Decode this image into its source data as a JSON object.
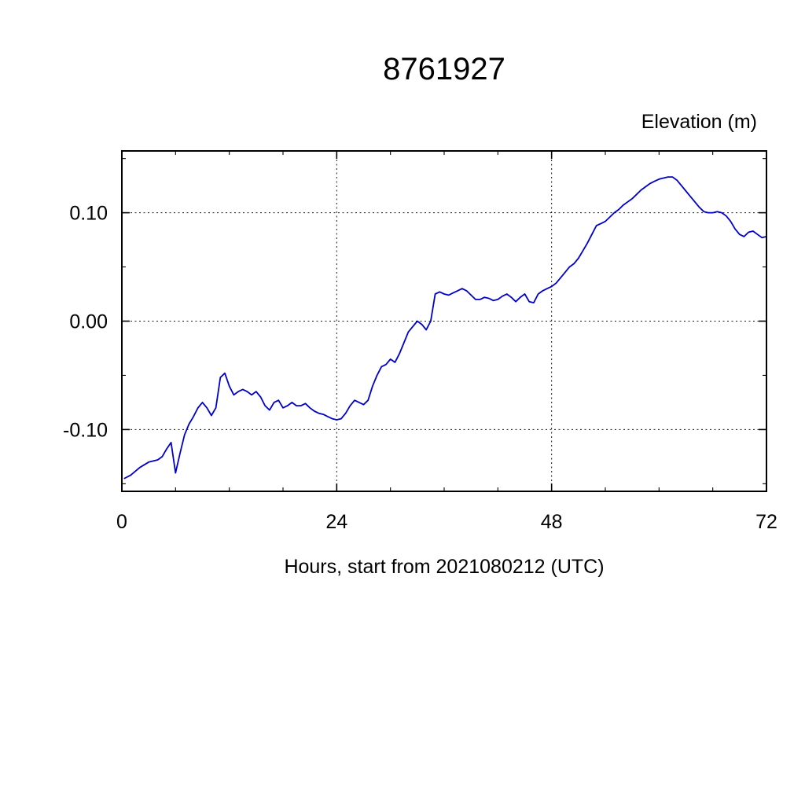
{
  "chart_data": {
    "type": "line",
    "title": "8761927",
    "top_right_label": "Elevation (m)",
    "xlabel": "Hours, start from 2021080212 (UTC)",
    "ylabel": "Elevation (m)",
    "xlim": [
      0,
      72
    ],
    "ylim": [
      -0.157,
      0.157
    ],
    "xticks": {
      "values": [
        0,
        24,
        48,
        72
      ],
      "labels": [
        "0",
        "24",
        "48",
        "72"
      ]
    },
    "yticks": {
      "values": [
        -0.1,
        0.0,
        0.1
      ],
      "labels": [
        "-0.10",
        "0.00",
        "0.10"
      ]
    },
    "x_minor_ticks": [
      6,
      12,
      18,
      30,
      36,
      42,
      54,
      60,
      66
    ],
    "y_minor_ticks": [
      -0.15,
      -0.05,
      0.05,
      0.15
    ],
    "grid": true,
    "legend": "none",
    "line_color": "#0000cc",
    "series": [
      {
        "name": "elevation",
        "points": [
          [
            0.3,
            -0.145
          ],
          [
            1,
            -0.142
          ],
          [
            2,
            -0.135
          ],
          [
            3,
            -0.13
          ],
          [
            4,
            -0.128
          ],
          [
            4.5,
            -0.125
          ],
          [
            5,
            -0.118
          ],
          [
            5.5,
            -0.112
          ],
          [
            6,
            -0.14
          ],
          [
            6.5,
            -0.122
          ],
          [
            7,
            -0.105
          ],
          [
            7.5,
            -0.095
          ],
          [
            8,
            -0.088
          ],
          [
            8.5,
            -0.08
          ],
          [
            9,
            -0.075
          ],
          [
            9.5,
            -0.08
          ],
          [
            10,
            -0.087
          ],
          [
            10.5,
            -0.08
          ],
          [
            11,
            -0.052
          ],
          [
            11.5,
            -0.048
          ],
          [
            12,
            -0.06
          ],
          [
            12.5,
            -0.068
          ],
          [
            13,
            -0.065
          ],
          [
            13.5,
            -0.063
          ],
          [
            14,
            -0.065
          ],
          [
            14.5,
            -0.068
          ],
          [
            15,
            -0.065
          ],
          [
            15.5,
            -0.07
          ],
          [
            16,
            -0.078
          ],
          [
            16.5,
            -0.082
          ],
          [
            17,
            -0.075
          ],
          [
            17.5,
            -0.073
          ],
          [
            18,
            -0.08
          ],
          [
            18.5,
            -0.078
          ],
          [
            19,
            -0.075
          ],
          [
            19.5,
            -0.078
          ],
          [
            20,
            -0.078
          ],
          [
            20.5,
            -0.076
          ],
          [
            21,
            -0.08
          ],
          [
            21.5,
            -0.083
          ],
          [
            22,
            -0.085
          ],
          [
            22.5,
            -0.086
          ],
          [
            23,
            -0.088
          ],
          [
            23.5,
            -0.09
          ],
          [
            24,
            -0.091
          ],
          [
            24.5,
            -0.09
          ],
          [
            25,
            -0.085
          ],
          [
            25.5,
            -0.078
          ],
          [
            26,
            -0.073
          ],
          [
            26.5,
            -0.075
          ],
          [
            27,
            -0.077
          ],
          [
            27.5,
            -0.073
          ],
          [
            28,
            -0.06
          ],
          [
            28.5,
            -0.05
          ],
          [
            29,
            -0.042
          ],
          [
            29.5,
            -0.04
          ],
          [
            30,
            -0.035
          ],
          [
            30.5,
            -0.038
          ],
          [
            31,
            -0.03
          ],
          [
            31.5,
            -0.02
          ],
          [
            32,
            -0.01
          ],
          [
            32.5,
            -0.005
          ],
          [
            33,
            0.0
          ],
          [
            33.5,
            -0.003
          ],
          [
            34,
            -0.008
          ],
          [
            34.5,
            0.0
          ],
          [
            35,
            0.025
          ],
          [
            35.5,
            0.027
          ],
          [
            36,
            0.025
          ],
          [
            36.5,
            0.024
          ],
          [
            37,
            0.026
          ],
          [
            37.5,
            0.028
          ],
          [
            38,
            0.03
          ],
          [
            38.5,
            0.028
          ],
          [
            39,
            0.024
          ],
          [
            39.5,
            0.02
          ],
          [
            40,
            0.02
          ],
          [
            40.5,
            0.022
          ],
          [
            41,
            0.021
          ],
          [
            41.5,
            0.019
          ],
          [
            42,
            0.02
          ],
          [
            42.5,
            0.023
          ],
          [
            43,
            0.025
          ],
          [
            43.5,
            0.022
          ],
          [
            44,
            0.018
          ],
          [
            44.5,
            0.022
          ],
          [
            45,
            0.025
          ],
          [
            45.5,
            0.018
          ],
          [
            46,
            0.017
          ],
          [
            46.5,
            0.025
          ],
          [
            47,
            0.028
          ],
          [
            47.5,
            0.03
          ],
          [
            48,
            0.032
          ],
          [
            48.5,
            0.035
          ],
          [
            49,
            0.04
          ],
          [
            49.5,
            0.045
          ],
          [
            50,
            0.05
          ],
          [
            50.5,
            0.053
          ],
          [
            51,
            0.058
          ],
          [
            51.5,
            0.065
          ],
          [
            52,
            0.072
          ],
          [
            52.5,
            0.08
          ],
          [
            53,
            0.088
          ],
          [
            53.5,
            0.09
          ],
          [
            54,
            0.092
          ],
          [
            54.5,
            0.096
          ],
          [
            55,
            0.1
          ],
          [
            55.5,
            0.103
          ],
          [
            56,
            0.107
          ],
          [
            56.5,
            0.11
          ],
          [
            57,
            0.113
          ],
          [
            57.5,
            0.117
          ],
          [
            58,
            0.121
          ],
          [
            58.5,
            0.124
          ],
          [
            59,
            0.127
          ],
          [
            59.5,
            0.129
          ],
          [
            60,
            0.131
          ],
          [
            60.5,
            0.132
          ],
          [
            61,
            0.133
          ],
          [
            61.5,
            0.133
          ],
          [
            62,
            0.13
          ],
          [
            62.5,
            0.125
          ],
          [
            63,
            0.12
          ],
          [
            63.5,
            0.115
          ],
          [
            64,
            0.11
          ],
          [
            64.5,
            0.105
          ],
          [
            65,
            0.101
          ],
          [
            65.5,
            0.1
          ],
          [
            66,
            0.1
          ],
          [
            66.5,
            0.101
          ],
          [
            67,
            0.1
          ],
          [
            67.5,
            0.097
          ],
          [
            68,
            0.092
          ],
          [
            68.5,
            0.085
          ],
          [
            69,
            0.08
          ],
          [
            69.5,
            0.078
          ],
          [
            70,
            0.082
          ],
          [
            70.5,
            0.083
          ],
          [
            71,
            0.08
          ],
          [
            71.5,
            0.077
          ],
          [
            72,
            0.078
          ]
        ]
      }
    ]
  }
}
